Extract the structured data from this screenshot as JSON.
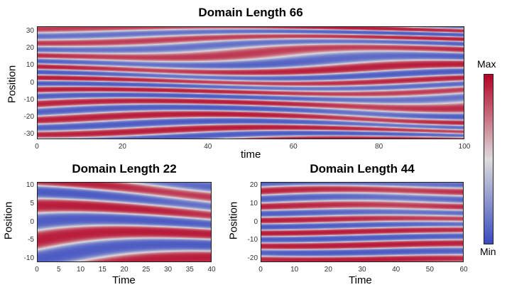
{
  "chart_data": [
    {
      "type": "heatmap",
      "title": "Domain Length 66",
      "xlabel": "time",
      "ylabel": "Position",
      "xlim": [
        0,
        100
      ],
      "ylim": [
        -33,
        33
      ],
      "xticks": [
        0,
        20,
        40,
        60,
        80,
        100
      ],
      "yticks": [
        30,
        20,
        10,
        0,
        -10,
        -20,
        -30
      ],
      "seed": 1
    },
    {
      "type": "heatmap",
      "title": "Domain Length 22",
      "xlabel": "Time",
      "ylabel": "Position",
      "xlim": [
        0,
        40
      ],
      "ylim": [
        -11,
        11
      ],
      "xticks": [
        0,
        5,
        10,
        15,
        20,
        25,
        30,
        35,
        40
      ],
      "yticks": [
        10,
        5,
        0,
        -5,
        -10
      ],
      "seed": 2
    },
    {
      "type": "heatmap",
      "title": "Domain Length 44",
      "xlabel": "Time",
      "ylabel": "Position",
      "xlim": [
        0,
        60
      ],
      "ylim": [
        -22,
        22
      ],
      "xticks": [
        0,
        10,
        20,
        30,
        40,
        50,
        60
      ],
      "yticks": [
        20,
        10,
        0,
        -10,
        -20
      ],
      "seed": 3
    }
  ],
  "colorbar": {
    "max_label": "Max",
    "min_label": "Min",
    "colormap": "coolwarm",
    "colors": {
      "low": "#3b4cc0",
      "mid": "#dddddd",
      "high": "#b40426"
    }
  }
}
